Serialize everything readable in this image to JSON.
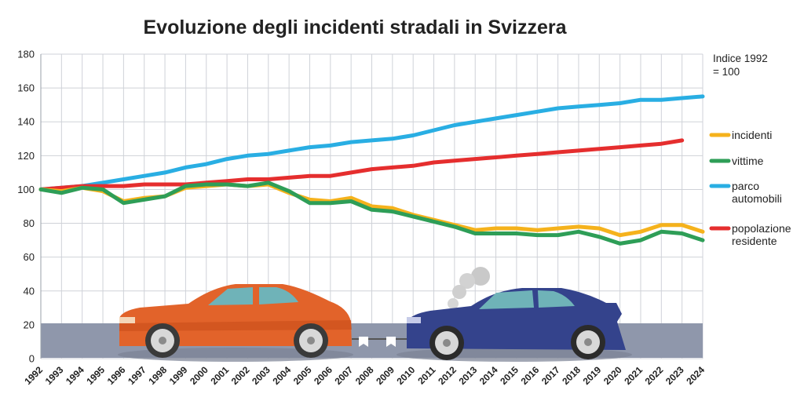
{
  "chart_data": {
    "type": "line",
    "title": "Evoluzione degli incidenti stradali in Svizzera",
    "index_note": [
      "Indice 1992",
      "= 100"
    ],
    "ylim": [
      0,
      180
    ],
    "yticks": [
      0,
      20,
      40,
      60,
      80,
      100,
      120,
      140,
      160,
      180
    ],
    "x": [
      "1992",
      "1993",
      "1994",
      "1995",
      "1996",
      "1997",
      "1998",
      "1999",
      "2000",
      "2001",
      "2002",
      "2003",
      "2004",
      "2005",
      "2006",
      "2007",
      "2008",
      "2009",
      "2010",
      "2011",
      "2012",
      "2013",
      "2014",
      "2015",
      "2016",
      "2017",
      "2018",
      "2019",
      "2020",
      "2021",
      "2022",
      "2023",
      "2024"
    ],
    "grid": true,
    "legend_position": "right",
    "series": [
      {
        "name": "incidenti",
        "color": "#f5b21c",
        "values": [
          100,
          99,
          101,
          99,
          93,
          95,
          96,
          101,
          102,
          103,
          102,
          103,
          98,
          94,
          93,
          95,
          90,
          89,
          85,
          82,
          79,
          76,
          77,
          77,
          76,
          77,
          78,
          77,
          73,
          75,
          79,
          79,
          75
        ]
      },
      {
        "name": "vittime",
        "color": "#2e9e57",
        "values": [
          100,
          98,
          101,
          100,
          92,
          94,
          96,
          102,
          103,
          103,
          102,
          104,
          99,
          92,
          92,
          93,
          88,
          87,
          84,
          81,
          78,
          74,
          74,
          74,
          73,
          73,
          75,
          72,
          68,
          70,
          75,
          74,
          70
        ]
      },
      {
        "name": "parco automobili",
        "label_lines": [
          "parco",
          "automobili"
        ],
        "color": "#29aee3",
        "values": [
          100,
          101,
          102,
          104,
          106,
          108,
          110,
          113,
          115,
          118,
          120,
          121,
          123,
          125,
          126,
          128,
          129,
          130,
          132,
          135,
          138,
          140,
          142,
          144,
          146,
          148,
          149,
          150,
          151,
          153,
          153,
          154,
          155
        ]
      },
      {
        "name": "popolazione residente",
        "label_lines": [
          "popolazione",
          "residente"
        ],
        "color": "#e52e2e",
        "values": [
          100,
          101,
          102,
          102,
          102,
          103,
          103,
          103,
          104,
          105,
          106,
          106,
          107,
          108,
          108,
          110,
          112,
          113,
          114,
          116,
          117,
          118,
          119,
          120,
          121,
          122,
          123,
          124,
          125,
          126,
          127,
          129,
          null
        ]
      }
    ]
  },
  "colors": {
    "road": "#8f97ab",
    "grid": "#cfd2d8",
    "car_left": "#e2632a",
    "car_right": "#34438c",
    "smoke": "#c9c9c9"
  }
}
